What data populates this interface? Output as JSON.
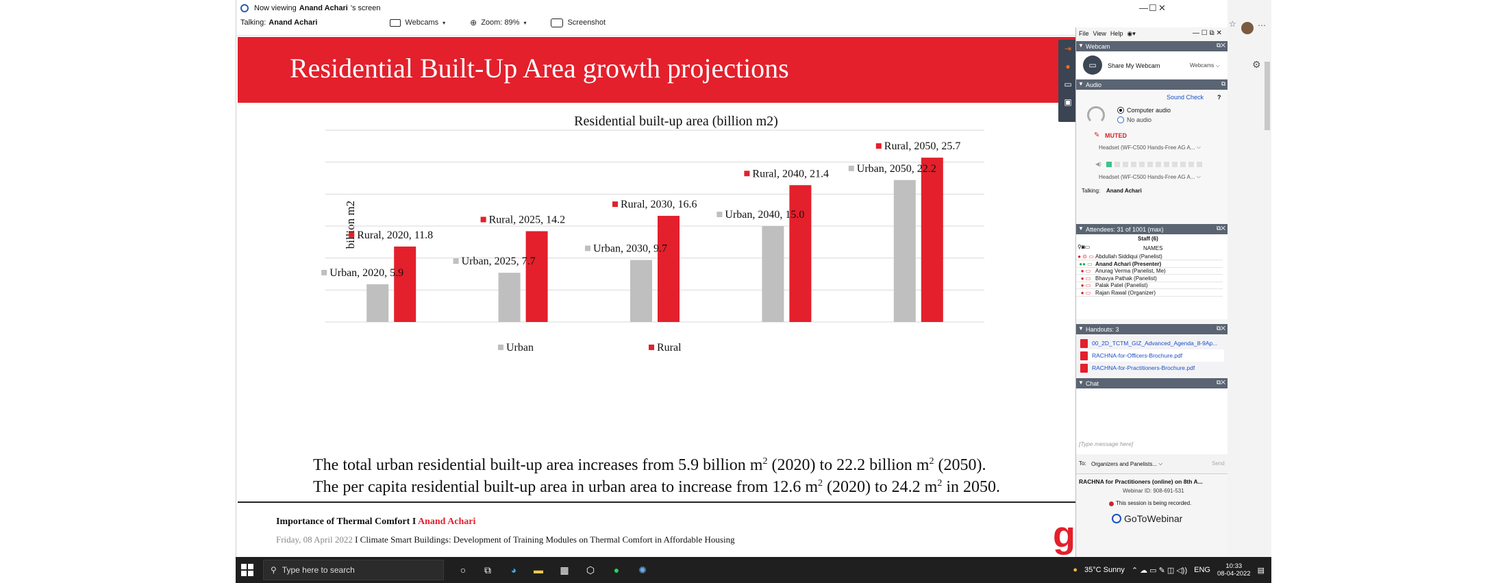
{
  "viewer": {
    "now_viewing_prefix": "Now viewing",
    "presenter_name": "Anand Achari",
    "now_viewing_suffix": "'s screen",
    "talking_label": "Talking:",
    "talking_name": "Anand Achari",
    "webcams_label": "Webcams",
    "zoom_label": "Zoom: 89%",
    "screenshot_label": "Screenshot"
  },
  "slide": {
    "title": "Residential Built-Up Area growth projections",
    "line1_a": "The total urban residential built-up area increases from 5.9 billion m",
    "line1_sup1": "2",
    "line1_b": " (2020) to 22.2 billion m",
    "line1_sup2": "2",
    "line1_c": " (2050).",
    "line2_a": "The per capita residential built-up area in urban area to increase from 12.6 m",
    "line2_sup1": "2",
    "line2_b": " (2020) to 24.2 m",
    "line2_sup2": "2",
    "line2_c": "  in 2050.",
    "footer_topic": "Importance of Thermal Comfort",
    "footer_sep": " I ",
    "footer_author": "Anand Achari",
    "footer_date": "Friday, 08 April 2022",
    "footer_sep2": "  I  ",
    "footer_project": "Climate Smart Buildings: Development of Training Modules on Thermal Comfort in Affordable Housing",
    "logo_letter": "g"
  },
  "chart_data": {
    "type": "bar",
    "title": "Residential built-up area (billion m2)",
    "ylabel": "billion m2",
    "xlabel": "",
    "categories": [
      "2020",
      "2025",
      "2030",
      "2040",
      "2050"
    ],
    "series": [
      {
        "name": "Urban",
        "color": "#bfbfbf",
        "values": [
          5.9,
          7.7,
          9.7,
          15.0,
          22.2
        ],
        "labels": [
          "Urban, 2020,  5.9",
          "Urban, 2025,  7.7",
          "Urban, 2030,  9.7",
          "Urban, 2040,  15.0",
          "Urban, 2050,  22.2"
        ]
      },
      {
        "name": "Rural",
        "color": "#e3202c",
        "values": [
          11.8,
          14.2,
          16.6,
          21.4,
          25.7
        ],
        "labels": [
          "Rural, 2020,  11.8",
          "Rural, 2025,  14.2",
          "Rural, 2030,  16.6",
          "Rural, 2040,  21.4",
          "Rural, 2050,  25.7"
        ]
      }
    ],
    "ylim": [
      0,
      30
    ],
    "grid": true,
    "legend": "bottom"
  },
  "panel": {
    "menu": [
      "File",
      "View",
      "Help"
    ],
    "webcam_header": "Webcam",
    "share_webcam": "Share My Webcam",
    "webcams_dropdown": "Webcams",
    "audio_header": "Audio",
    "sound_check": "Sound Check",
    "help_q": "?",
    "computer_audio": "Computer audio",
    "no_audio": "No audio",
    "muted": "MUTED",
    "mic_device": "Headset (WF-C500 Hands-Free AG A...",
    "speaker_device": "Headset (WF-C500 Hands-Free AG A...",
    "talking_label": "Talking:",
    "talking_name": "Anand Achari",
    "attendees_header": "Attendees: 31 of 1001 (max)",
    "staff_label": "Staff (6)",
    "names_label": "NAMES",
    "attendees": [
      "Abdullah Siddiqui (Panelist)",
      "Anand Achari (Presenter)",
      "Anurag Verma (Panelist, Me)",
      "Bhavya Pathak (Panelist)",
      "Palak Patel (Panelist)",
      "Rajan Rawal (Organizer)"
    ],
    "handouts_header": "Handouts: 3",
    "handouts": [
      "00_2D_TCTM_GIZ_Advanced_Agenda_8-9Ap...",
      "RACHNA-for-Officers-Brochure.pdf",
      "RACHNA-for-Practitioners-Brochure.pdf"
    ],
    "chat_header": "Chat",
    "chat_placeholder": "[Type message here]",
    "to_label": "To:",
    "to_value": "Organizers and Panelists...",
    "send_label": "Send",
    "webinar_title": "RACHNA for Practitioners (online) on 8th A...",
    "webinar_id": "Webinar ID: 908-691-531",
    "recording": "This session is being recorded.",
    "brand": "GoToWebinar"
  },
  "taskbar": {
    "search_placeholder": "Type here to search",
    "weather": "35°C  Sunny",
    "lang": "ENG",
    "time": "10:33",
    "date": "08-04-2022"
  }
}
